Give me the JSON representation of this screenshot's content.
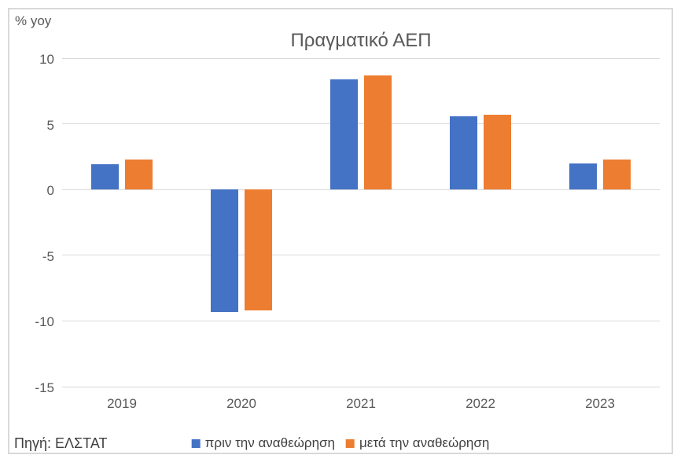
{
  "title": "Πραγματικό ΑΕΠ",
  "unit_label": "% yoy",
  "source": "Πηγή: ΕΛΣΤΑΤ",
  "colors": {
    "series_before": "#4472C4",
    "series_after": "#ED7D31",
    "gridline": "#d9d9d9",
    "axis_text": "#595959",
    "title_text": "#595959",
    "footer_text": "#404040",
    "frame_border": "#d9d9d9",
    "background": "#ffffff"
  },
  "chart_data": {
    "type": "bar",
    "title": "Πραγματικό ΑΕΠ",
    "ylabel": "% yoy",
    "xlabel": "",
    "categories": [
      "2019",
      "2020",
      "2021",
      "2022",
      "2023"
    ],
    "series": [
      {
        "name": "πριν την αναθεώρηση",
        "color": "#4472C4",
        "values": [
          1.9,
          -9.3,
          8.4,
          5.6,
          2.0
        ]
      },
      {
        "name": "μετά την αναθεώρηση",
        "color": "#ED7D31",
        "values": [
          2.3,
          -9.2,
          8.7,
          5.7,
          2.3
        ]
      }
    ],
    "ylim": [
      -15,
      10
    ],
    "ytick_step": 5,
    "ytick_labels": [
      "10",
      "5",
      "0",
      "-5",
      "-10",
      "-15"
    ],
    "grid": true,
    "legend_position": "bottom",
    "source": "Πηγή: ΕΛΣΤΑΤ"
  }
}
